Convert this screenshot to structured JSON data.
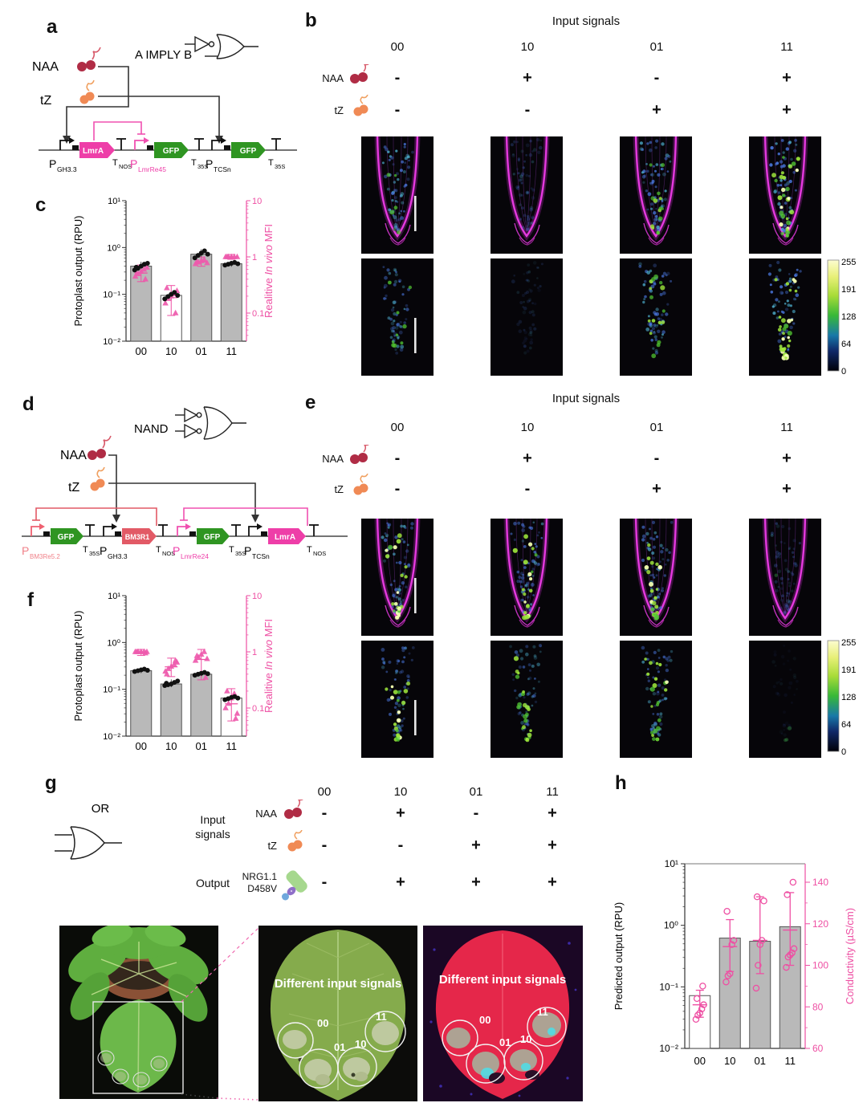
{
  "colors": {
    "magenta_gene": "#ee3ea8",
    "green_gene": "#2f9522",
    "salmon_gene": "#e25a66",
    "pink_axis": "#ee4fa3",
    "pink_repress": "#f050b0",
    "salmon_repress": "#e25a66",
    "gray_bar": "#b9b9b9",
    "naa_red": "#b02c45",
    "tz_orange": "#f08a55"
  },
  "panel_a": {
    "label": "a",
    "gate": "A IMPLY B",
    "input1": "NAA",
    "input2": "tZ",
    "pro1": "P",
    "pro1s": "GH3.3",
    "gene1": "LmrA",
    "ter1": "T",
    "ter1s": "NOS",
    "pro2": "P",
    "pro2s": "LmrRe45",
    "gene2": "GFP",
    "ter2": "T",
    "ter2s": "35S",
    "pro3": "P",
    "pro3s": "TCSn",
    "gene3": "GFP",
    "ter3": "T",
    "ter3s": "35S"
  },
  "panel_b": {
    "label": "b",
    "title": "Input signals",
    "columns": [
      "00",
      "10",
      "01",
      "11"
    ],
    "rows": [
      {
        "name": "NAA",
        "values": [
          "-",
          "+",
          "-",
          "+"
        ]
      },
      {
        "name": "tZ",
        "values": [
          "-",
          "-",
          "+",
          "+"
        ]
      }
    ],
    "colorbar": [
      "255",
      "191",
      "128",
      "64",
      "0"
    ]
  },
  "panel_c": {
    "label": "c"
  },
  "panel_d": {
    "label": "d",
    "gate": "NAND",
    "input1": "NAA",
    "input2": "tZ",
    "pro1": "P",
    "pro1s": "BM3Re5.2",
    "gene1": "GFP",
    "ter1": "T",
    "ter1s": "35S",
    "pro2": "P",
    "pro2s": "GH3.3",
    "gene2": "BM3R1",
    "ter2": "T",
    "ter2s": "NOS",
    "pro3": "P",
    "pro3s": "LmrRe24",
    "gene3": "GFP",
    "ter3": "T",
    "ter3s": "35S",
    "pro4": "P",
    "pro4s": "TCSn",
    "gene4": "LmrA",
    "ter4": "T",
    "ter4s": "NOS"
  },
  "panel_e": {
    "label": "e",
    "title": "Input signals",
    "columns": [
      "00",
      "10",
      "01",
      "11"
    ],
    "rows": [
      {
        "name": "NAA",
        "values": [
          "-",
          "+",
          "-",
          "+"
        ]
      },
      {
        "name": "tZ",
        "values": [
          "-",
          "-",
          "+",
          "+"
        ]
      }
    ],
    "colorbar": [
      "255",
      "191",
      "128",
      "64",
      "0"
    ]
  },
  "panel_f": {
    "label": "f"
  },
  "panel_g": {
    "label": "g",
    "gate": "OR",
    "group1a": "Input",
    "group1b": "signals",
    "group2": "Output",
    "columns": [
      "00",
      "10",
      "01",
      "11"
    ],
    "rows": [
      {
        "name": "NAA",
        "values": [
          "-",
          "+",
          "-",
          "+"
        ]
      },
      {
        "name": "tZ",
        "values": [
          "-",
          "-",
          "+",
          "+"
        ]
      }
    ],
    "output": {
      "name1": "NRG1.1",
      "name2": "D458V",
      "values": [
        "-",
        "+",
        "+",
        "+"
      ]
    }
  },
  "panel_h": {
    "label": "h"
  },
  "leaves": {
    "mid": {
      "caption": "Different input signals",
      "labels": [
        "00",
        "01",
        "10",
        "11"
      ]
    },
    "right": {
      "caption": "Different input signals",
      "labels": [
        "00",
        "01",
        "10",
        "11"
      ]
    }
  },
  "chart_data": [
    {
      "id": "chart-c",
      "type": "bar",
      "categories": [
        "00",
        "10",
        "01",
        "11"
      ],
      "left_axis": {
        "label": "Protoplast output (RPU)",
        "scale": "log",
        "range": [
          0.01,
          10
        ],
        "ticks": [
          "10¹",
          "10⁰",
          "10⁻¹",
          "10⁻²"
        ]
      },
      "right_axis": {
        "label_parts": [
          "Realitive ",
          "In vivo",
          " MFI"
        ],
        "scale": "log",
        "ticks": [
          "10",
          "1",
          "0.1"
        ]
      },
      "bars": {
        "values": [
          0.4,
          0.095,
          0.72,
          0.45
        ],
        "fills": [
          "gray",
          "white",
          "gray",
          "gray"
        ]
      },
      "dots_rpu": [
        [
          0.33,
          0.36,
          0.4,
          0.44,
          0.46,
          0.38
        ],
        [
          0.08,
          0.09,
          0.1,
          0.11,
          0.095
        ],
        [
          0.6,
          0.68,
          0.76,
          0.85,
          0.72
        ],
        [
          0.42,
          0.44,
          0.46,
          0.48,
          0.45
        ]
      ],
      "triangles_mfi": [
        [
          0.45,
          0.5,
          0.55,
          0.6,
          0.65,
          0.5,
          0.4
        ],
        [
          0.15,
          0.18,
          0.2,
          0.22,
          0.25,
          0.28,
          0.1
        ],
        [
          0.75,
          0.8,
          0.85,
          0.9,
          0.78,
          0.82
        ],
        [
          1.0,
          1.0,
          1.0,
          1.0,
          1.0,
          1.0
        ]
      ]
    },
    {
      "id": "chart-f",
      "type": "bar",
      "categories": [
        "00",
        "10",
        "01",
        "11"
      ],
      "left_axis": {
        "label": "Protoplast output (RPU)",
        "scale": "log",
        "range": [
          0.01,
          10
        ],
        "ticks": [
          "10¹",
          "10⁰",
          "10⁻¹",
          "10⁻²"
        ]
      },
      "right_axis": {
        "label_parts": [
          "Realitive ",
          "In vivo",
          " MFI"
        ],
        "scale": "log",
        "ticks": [
          "10",
          "1",
          "0.1"
        ]
      },
      "bars": {
        "values": [
          0.25,
          0.13,
          0.21,
          0.065
        ],
        "fills": [
          "gray",
          "gray",
          "gray",
          "white"
        ]
      },
      "dots_rpu": [
        [
          0.24,
          0.25,
          0.26,
          0.27,
          0.255
        ],
        [
          0.12,
          0.125,
          0.13,
          0.14,
          0.15,
          0.135
        ],
        [
          0.2,
          0.21,
          0.22,
          0.23,
          0.215
        ],
        [
          0.06,
          0.063,
          0.067,
          0.07,
          0.065
        ]
      ],
      "triangles_mfi": [
        [
          1.0,
          1.0,
          1.0,
          1.0,
          1.0,
          1.0,
          0.95
        ],
        [
          0.45,
          0.5,
          0.55,
          0.6,
          0.65,
          0.4,
          0.7
        ],
        [
          0.7,
          0.8,
          0.9,
          1.0,
          0.75,
          0.85,
          0.35
        ],
        [
          0.1,
          0.12,
          0.15,
          0.18,
          0.08,
          0.2,
          0.065
        ]
      ]
    },
    {
      "id": "chart-h",
      "type": "bar",
      "categories": [
        "00",
        "10",
        "01",
        "11"
      ],
      "left_axis": {
        "label": "Predicted output (RPU)",
        "scale": "log",
        "range": [
          0.01,
          10
        ],
        "ticks": [
          "10¹",
          "10⁰",
          "10⁻¹",
          "10⁻²"
        ]
      },
      "right_axis": {
        "label": "Conductivity (µS/cm)",
        "scale": "linear",
        "ticks": [
          140,
          120,
          100,
          80,
          60
        ]
      },
      "bars": {
        "values": [
          0.072,
          0.62,
          0.55,
          0.95
        ],
        "fills": [
          "white",
          "gray",
          "gray",
          "gray"
        ]
      },
      "circles_conductivity": [
        [
          74,
          76,
          77,
          79,
          81,
          84,
          90
        ],
        [
          92,
          95,
          96,
          110,
          112,
          126
        ],
        [
          89,
          100,
          110,
          112,
          131,
          133
        ],
        [
          99,
          104,
          105,
          106,
          108,
          134,
          140
        ]
      ],
      "conductivity_mean": [
        81,
        109,
        112,
        117
      ],
      "conductivity_err": [
        [
          75,
          88
        ],
        [
          97,
          122
        ],
        [
          96,
          133
        ],
        [
          100,
          135
        ]
      ]
    }
  ],
  "microscopy": {
    "b_top": [
      {
        "wall": true,
        "blue": 0.75,
        "green": 6,
        "bright": 0.55
      },
      {
        "wall": true,
        "blue": 0.3,
        "green": 0,
        "bright": 0
      },
      {
        "wall": true,
        "blue": 0.75,
        "green": 15,
        "bright": 0.75
      },
      {
        "wall": true,
        "blue": 0.85,
        "green": 30,
        "bright": 1
      }
    ],
    "b_bottom": [
      {
        "wall": false,
        "blue": 0.6,
        "green": 9,
        "bright": 0.6
      },
      {
        "wall": false,
        "blue": 0.18,
        "green": 0,
        "bright": 0
      },
      {
        "wall": false,
        "blue": 0.7,
        "green": 16,
        "bright": 0.8
      },
      {
        "wall": false,
        "blue": 0.8,
        "green": 32,
        "bright": 1
      }
    ],
    "e_top": [
      {
        "wall": true,
        "blue": 0.65,
        "green": 22,
        "bright": 1
      },
      {
        "wall": true,
        "blue": 0.65,
        "green": 22,
        "bright": 0.95
      },
      {
        "wall": true,
        "blue": 0.65,
        "green": 22,
        "bright": 0.95
      },
      {
        "wall": true,
        "blue": 0.3,
        "green": 1,
        "bright": 0.25
      }
    ],
    "e_bottom": [
      {
        "wall": false,
        "blue": 0.6,
        "green": 22,
        "bright": 1
      },
      {
        "wall": false,
        "blue": 0.55,
        "green": 22,
        "bright": 0.9
      },
      {
        "wall": false,
        "blue": 0.6,
        "green": 22,
        "bright": 0.9
      },
      {
        "wall": false,
        "blue": 0.07,
        "green": 3,
        "bright": 0.2
      }
    ]
  }
}
